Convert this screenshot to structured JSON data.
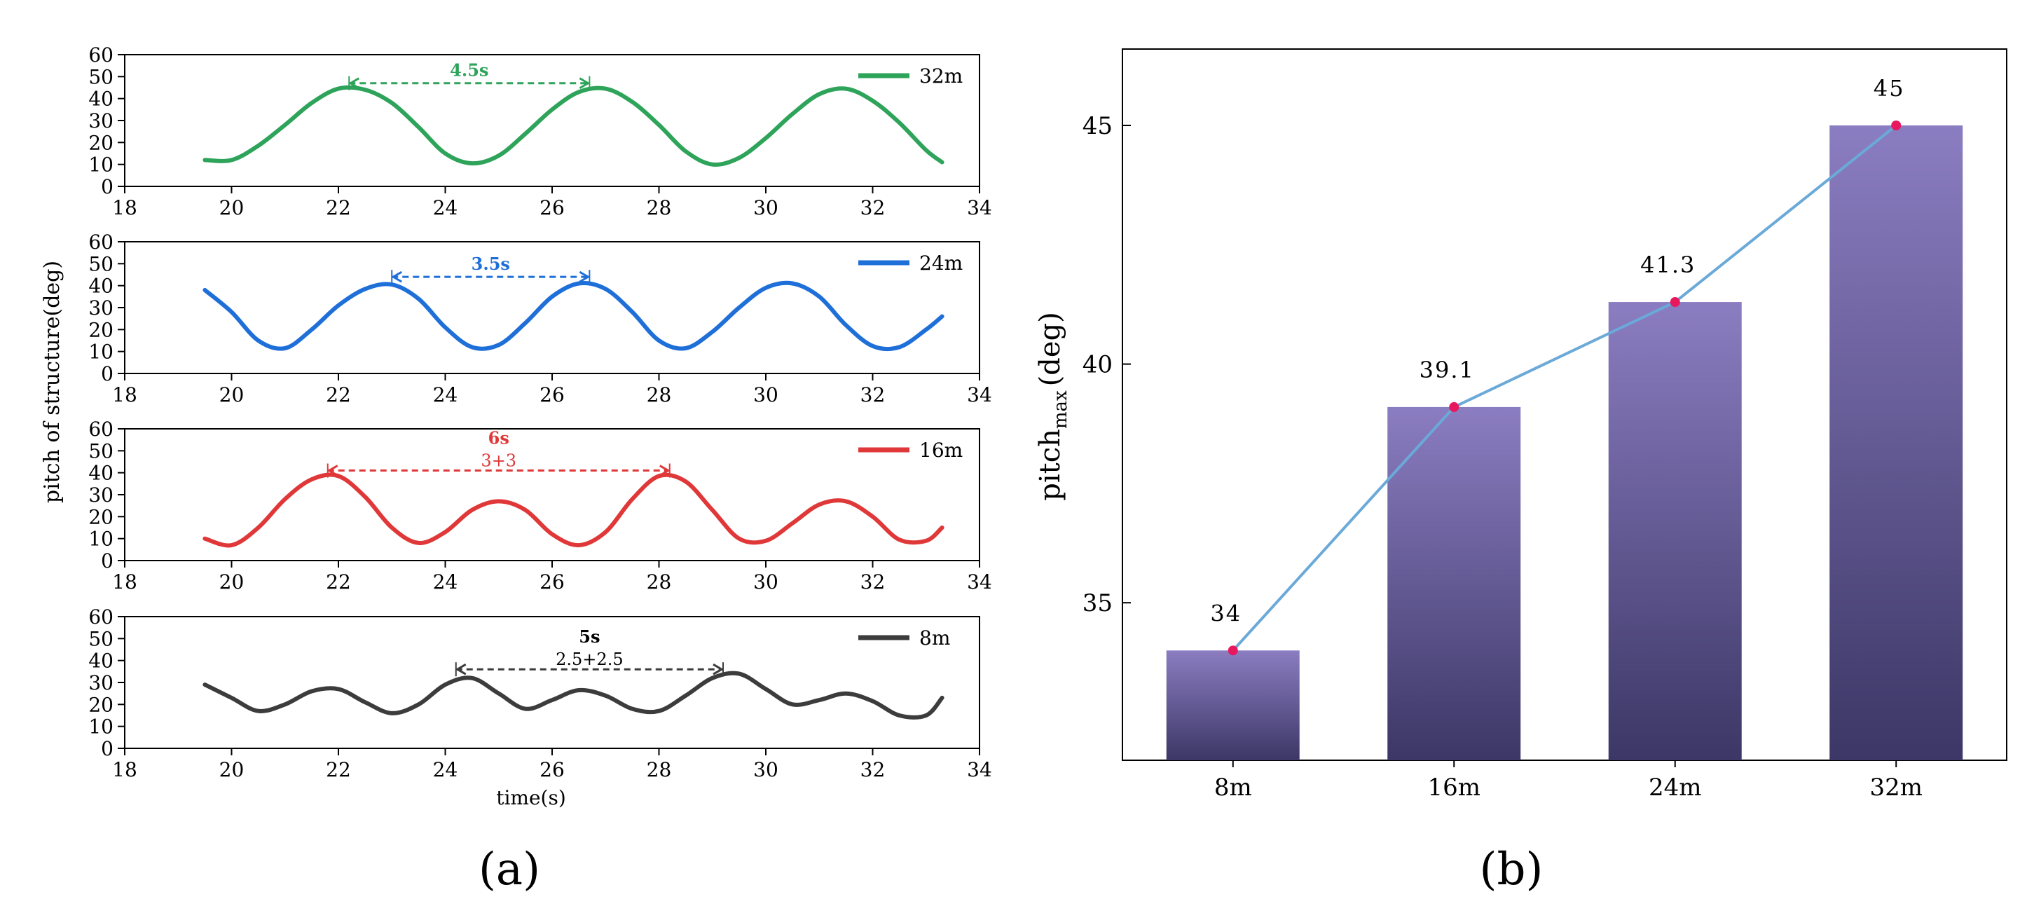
{
  "panel_labels": {
    "a": "(a)",
    "b": "(b)"
  },
  "chart_data": [
    {
      "type": "line",
      "panel": "a",
      "xlabel": "time(s)",
      "ylabel": "pitch of structure(deg)",
      "xlim": [
        18,
        34
      ],
      "ylim": [
        0,
        60
      ],
      "xticks": [
        "18",
        "20",
        "22",
        "24",
        "26",
        "28",
        "30",
        "32",
        "34"
      ],
      "yticks": [
        "0",
        "10",
        "20",
        "30",
        "40",
        "50",
        "60"
      ],
      "subplots": [
        {
          "name": "32m",
          "color": "#2ea35a",
          "annotation": {
            "label": "4.5s",
            "sublabel": "",
            "x_start": 22.2,
            "x_end": 26.7,
            "y": 47
          },
          "x": [
            19.5,
            20.0,
            20.5,
            21.0,
            21.5,
            22.0,
            22.5,
            23.0,
            23.5,
            24.0,
            24.5,
            25.0,
            25.5,
            26.0,
            26.5,
            27.0,
            27.5,
            28.0,
            28.5,
            29.0,
            29.5,
            30.0,
            30.5,
            31.0,
            31.5,
            32.0,
            32.5,
            33.0,
            33.3
          ],
          "y": [
            12.0,
            12.0,
            18.5,
            28.0,
            38.0,
            44.5,
            44.0,
            38.0,
            27.0,
            15.0,
            10.5,
            14.0,
            24.0,
            35.0,
            43.0,
            44.5,
            38.5,
            28.0,
            16.0,
            10.0,
            13.0,
            22.0,
            33.0,
            42.0,
            44.5,
            39.0,
            29.0,
            16.5,
            11.0
          ]
        },
        {
          "name": "24m",
          "color": "#1f6fd9",
          "annotation": {
            "label": "3.5s",
            "sublabel": "",
            "x_start": 23.0,
            "x_end": 26.7,
            "y": 44
          },
          "x": [
            19.5,
            20.0,
            20.5,
            21.0,
            21.5,
            22.0,
            22.5,
            23.0,
            23.5,
            24.0,
            24.5,
            25.0,
            25.5,
            26.0,
            26.5,
            27.0,
            27.5,
            28.0,
            28.5,
            29.0,
            29.5,
            30.0,
            30.5,
            31.0,
            31.5,
            32.0,
            32.5,
            33.0,
            33.3
          ],
          "y": [
            38.0,
            28.0,
            15.0,
            11.5,
            20.0,
            31.0,
            38.5,
            40.5,
            34.0,
            21.0,
            12.0,
            13.0,
            23.0,
            35.0,
            41.0,
            38.5,
            28.0,
            15.0,
            11.5,
            19.0,
            30.0,
            39.0,
            41.0,
            35.0,
            22.0,
            12.5,
            12.0,
            20.0,
            26.0
          ]
        },
        {
          "name": "16m",
          "color": "#e03838",
          "annotation": {
            "label": "6s",
            "sublabel": "3+3",
            "x_start": 21.8,
            "x_end": 28.2,
            "y": 41
          },
          "x": [
            19.5,
            20.0,
            20.5,
            21.0,
            21.5,
            22.0,
            22.5,
            23.0,
            23.5,
            24.0,
            24.5,
            25.0,
            25.5,
            26.0,
            26.5,
            27.0,
            27.5,
            28.0,
            28.5,
            29.0,
            29.5,
            30.0,
            30.5,
            31.0,
            31.5,
            32.0,
            32.5,
            33.0,
            33.3
          ],
          "y": [
            10.0,
            7.0,
            15.0,
            28.0,
            37.0,
            38.5,
            29.0,
            15.0,
            8.0,
            13.0,
            23.0,
            27.0,
            23.0,
            12.0,
            7.0,
            13.0,
            28.0,
            38.5,
            36.0,
            23.0,
            10.0,
            9.0,
            17.0,
            25.5,
            27.0,
            20.0,
            9.5,
            9.0,
            15.0
          ]
        },
        {
          "name": "8m",
          "color": "#3c3c3c",
          "annotation": {
            "label": "5s",
            "sublabel": "2.5+2.5",
            "x_start": 24.2,
            "x_end": 29.2,
            "y": 36
          },
          "x": [
            19.5,
            20.0,
            20.5,
            21.0,
            21.5,
            22.0,
            22.5,
            23.0,
            23.5,
            24.0,
            24.5,
            25.0,
            25.5,
            26.0,
            26.5,
            27.0,
            27.5,
            28.0,
            28.5,
            29.0,
            29.5,
            30.0,
            30.5,
            31.0,
            31.5,
            32.0,
            32.5,
            33.0,
            33.3
          ],
          "y": [
            29.0,
            23.0,
            17.0,
            20.0,
            26.0,
            27.0,
            21.0,
            16.0,
            20.0,
            29.0,
            32.0,
            25.0,
            18.0,
            22.0,
            26.5,
            24.0,
            18.0,
            17.0,
            24.0,
            32.0,
            34.0,
            27.0,
            20.0,
            22.0,
            25.0,
            21.5,
            15.0,
            15.0,
            23.0
          ]
        }
      ]
    },
    {
      "type": "bar",
      "panel": "b",
      "xlabel": "",
      "ylabel_main": "pitch",
      "ylabel_sub": "max",
      "ylabel_unit": "(deg)",
      "ylim": [
        31.7,
        46.6
      ],
      "yticks": [
        "35",
        "40",
        "45"
      ],
      "categories": [
        "8m",
        "16m",
        "24m",
        "32m"
      ],
      "values": [
        34.0,
        39.1,
        41.3,
        45.0
      ],
      "value_labels": [
        "34",
        "39.1",
        "41.3",
        "45"
      ],
      "bar_color_top": "#8b7dc1",
      "bar_color_bottom": "#3c3766",
      "line_color": "#6aa9d8",
      "marker_color": "#e8185e"
    }
  ]
}
